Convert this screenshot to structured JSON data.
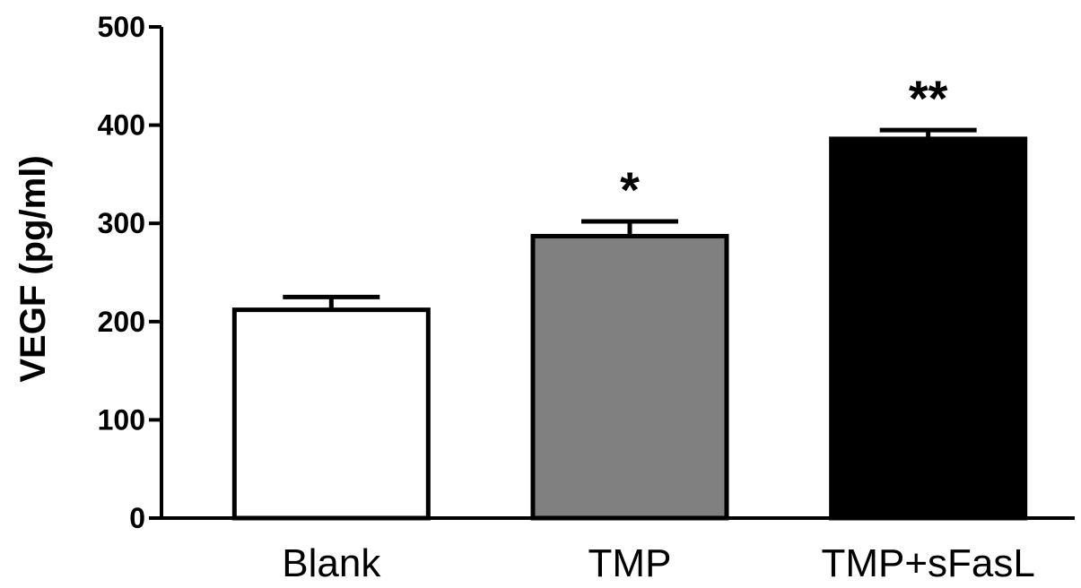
{
  "chart_data": {
    "type": "bar",
    "categories": [
      "Blank",
      "TMP",
      "TMP+sFasL"
    ],
    "values": [
      212,
      287,
      386
    ],
    "errors": [
      13,
      15,
      9
    ],
    "significance": [
      "",
      "*",
      "**"
    ],
    "bar_colors": [
      "#ffffff",
      "#808080",
      "#000000"
    ],
    "xlabel": "",
    "ylabel": "VEGF (pg/ml)",
    "ylim": [
      0,
      500
    ],
    "yticks": [
      0,
      100,
      200,
      300,
      400,
      500
    ],
    "grid": false,
    "legend": "none"
  }
}
